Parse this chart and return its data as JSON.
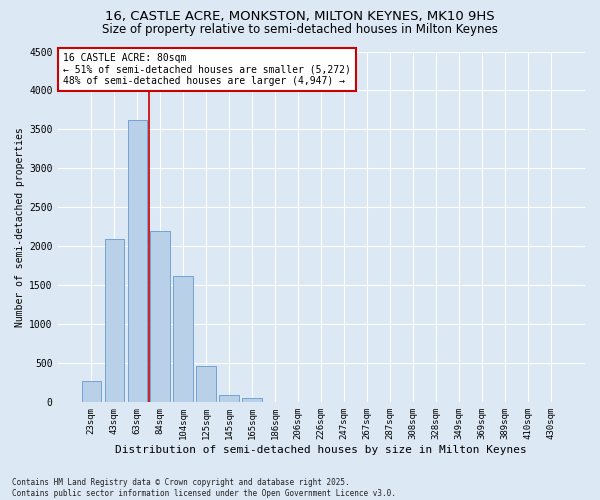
{
  "title1": "16, CASTLE ACRE, MONKSTON, MILTON KEYNES, MK10 9HS",
  "title2": "Size of property relative to semi-detached houses in Milton Keynes",
  "xlabel": "Distribution of semi-detached houses by size in Milton Keynes",
  "ylabel": "Number of semi-detached properties",
  "annotation_title": "16 CASTLE ACRE: 80sqm",
  "annotation_line1": "← 51% of semi-detached houses are smaller (5,272)",
  "annotation_line2": "48% of semi-detached houses are larger (4,947) →",
  "footer1": "Contains HM Land Registry data © Crown copyright and database right 2025.",
  "footer2": "Contains public sector information licensed under the Open Government Licence v3.0.",
  "bar_categories": [
    "23sqm",
    "43sqm",
    "63sqm",
    "84sqm",
    "104sqm",
    "125sqm",
    "145sqm",
    "165sqm",
    "186sqm",
    "206sqm",
    "226sqm",
    "247sqm",
    "267sqm",
    "287sqm",
    "308sqm",
    "328sqm",
    "349sqm",
    "369sqm",
    "389sqm",
    "410sqm",
    "430sqm"
  ],
  "bar_values": [
    280,
    2100,
    3620,
    2200,
    1620,
    460,
    100,
    60,
    5,
    0,
    0,
    0,
    0,
    0,
    0,
    0,
    0,
    0,
    0,
    0,
    0
  ],
  "bar_color": "#b8d0e8",
  "bar_edgecolor": "#6699cc",
  "vline_color": "#cc0000",
  "vline_x_index": 2.5,
  "ylim": [
    0,
    4500
  ],
  "yticks": [
    0,
    500,
    1000,
    1500,
    2000,
    2500,
    3000,
    3500,
    4000,
    4500
  ],
  "background_color": "#dce8f4",
  "grid_color": "#ffffff",
  "title1_fontsize": 9.5,
  "title2_fontsize": 8.5,
  "xlabel_fontsize": 8,
  "ylabel_fontsize": 7,
  "tick_fontsize": 7,
  "annot_fontsize": 7,
  "footer_fontsize": 5.5
}
